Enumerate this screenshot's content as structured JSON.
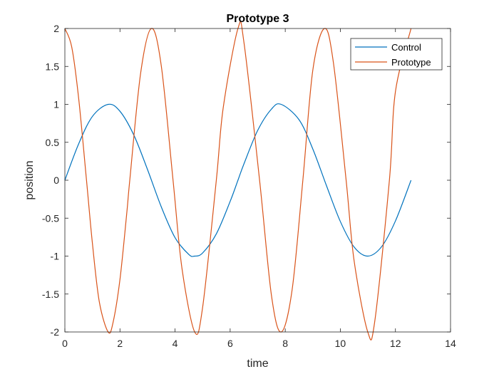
{
  "chart_data": {
    "type": "line",
    "title": "Prototype 3",
    "xlabel": "time",
    "ylabel": "position",
    "xlim": [
      0,
      14
    ],
    "ylim": [
      -2,
      2
    ],
    "xticks": [
      0,
      2,
      4,
      6,
      8,
      10,
      12,
      14
    ],
    "yticks": [
      -2,
      -1.5,
      -1,
      -0.5,
      0,
      0.5,
      1,
      1.5,
      2
    ],
    "xtick_labels": [
      "0",
      "2",
      "4",
      "6",
      "8",
      "10",
      "12",
      "14"
    ],
    "ytick_labels": [
      "-2",
      "-1.5",
      "-1",
      "-0.5",
      "0",
      "0.5",
      "1",
      "1.5",
      "2"
    ],
    "grid": false,
    "legend_position": "top-right",
    "series": [
      {
        "name": "Control",
        "color": "#0072BD",
        "x": [
          0,
          0.5,
          1,
          1.5708,
          2,
          2.5,
          3,
          3.5,
          4,
          4.5,
          4.7124,
          5,
          5.5,
          6,
          6.2832,
          6.5,
          7,
          7.5,
          7.854,
          8.5,
          9,
          9.5,
          10,
          10.5,
          10.9956,
          11.5,
          12,
          12.5664
        ],
        "y": [
          0,
          0.479,
          0.841,
          1.0,
          0.909,
          0.598,
          0.141,
          -0.351,
          -0.757,
          -0.978,
          -1.0,
          -0.959,
          -0.706,
          -0.279,
          0,
          0.215,
          0.657,
          0.938,
          1.0,
          0.798,
          0.412,
          -0.075,
          -0.544,
          -0.88,
          -1.0,
          -0.875,
          -0.537,
          0
        ]
      },
      {
        "name": "Prototype",
        "color": "#D95319",
        "x": [
          0,
          0.25,
          0.5,
          0.7854,
          1,
          1.25,
          1.5708,
          1.75,
          2,
          2.25,
          2.3562,
          2.75,
          3.1416,
          3.5,
          3.927,
          4.25,
          4.7124,
          5.0,
          5.4978,
          5.75,
          6.2832,
          6.5,
          7.0686,
          7.5,
          7.854,
          8.25,
          8.6394,
          9.0,
          9.4248,
          9.75,
          10.2102,
          10.5,
          10.9956,
          11.25,
          11.781,
          12.0,
          12.5664
        ],
        "y": [
          2,
          1.755,
          1.081,
          0,
          -0.832,
          -1.602,
          -2,
          -1.873,
          -1.307,
          -0.422,
          0,
          1.41,
          2,
          1.508,
          0,
          -1.159,
          -2,
          -1.678,
          0,
          0.96,
          2,
          1.819,
          0,
          -1.52,
          -2,
          -1.443,
          0,
          1.449,
          2,
          1.545,
          0,
          -1.062,
          -2,
          -1.859,
          0,
          1.168,
          2
        ]
      }
    ]
  }
}
